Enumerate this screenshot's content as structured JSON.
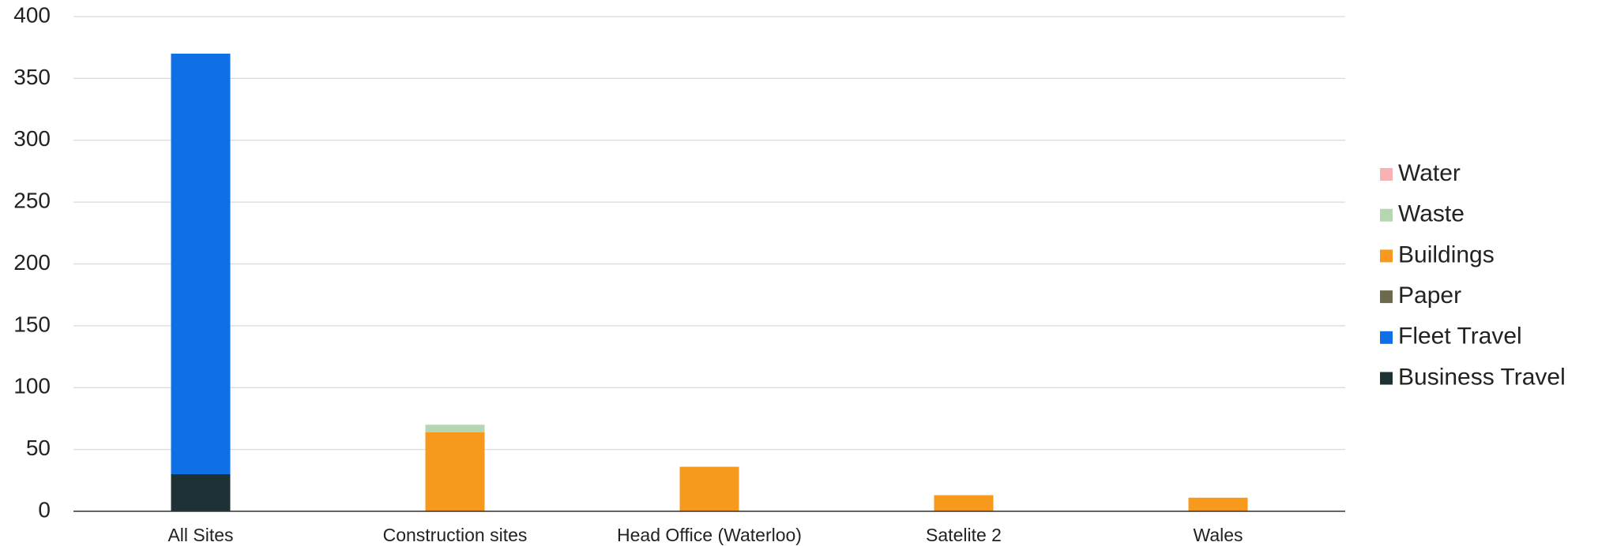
{
  "chart_data": {
    "type": "stacked_bar",
    "categories": [
      "All Sites",
      "Construction sites",
      "Head Office (Waterloo)",
      "Satelite 2",
      "Wales"
    ],
    "series": [
      {
        "name": "Business Travel",
        "color": "#1e3235",
        "values": [
          30,
          0,
          0,
          0,
          0
        ]
      },
      {
        "name": "Fleet Travel",
        "color": "#0e70e4",
        "values": [
          340,
          0,
          0,
          0,
          0
        ]
      },
      {
        "name": "Paper",
        "color": "#6b6a4e",
        "values": [
          0,
          0,
          0,
          0,
          0
        ]
      },
      {
        "name": "Buildings",
        "color": "#f7991d",
        "values": [
          0,
          64,
          36,
          13,
          11
        ]
      },
      {
        "name": "Waste",
        "color": "#b5d6b2",
        "values": [
          0,
          6,
          0,
          0,
          0
        ]
      },
      {
        "name": "Water",
        "color": "#f7b3b3",
        "values": [
          0,
          0,
          0,
          0,
          0
        ]
      }
    ],
    "ylim": [
      0,
      400
    ],
    "yticks": [
      0,
      50,
      100,
      150,
      200,
      250,
      300,
      350,
      400
    ],
    "grid": true,
    "legend": "right"
  }
}
